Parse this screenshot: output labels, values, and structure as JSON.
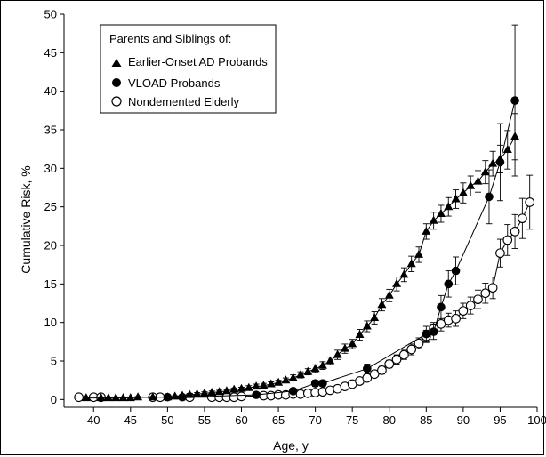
{
  "chart_data": {
    "type": "scatter",
    "title": "",
    "xlabel": "Age, y",
    "ylabel": "Cumulative Risk, %",
    "xlim": [
      36,
      100
    ],
    "ylim": [
      -1,
      50
    ],
    "xticks": [
      40,
      45,
      50,
      55,
      60,
      65,
      70,
      75,
      80,
      85,
      90,
      95,
      100
    ],
    "yticks": [
      0,
      5,
      10,
      15,
      20,
      25,
      30,
      35,
      40,
      45,
      50
    ],
    "grid": false,
    "legend": {
      "title": "Parents and Siblings of:",
      "placement": "top-left"
    },
    "series": [
      {
        "name": "Earlier-Onset AD Probands",
        "marker": "filled-triangle",
        "connected": true,
        "x": [
          39,
          41,
          42,
          43,
          44,
          45,
          46,
          48,
          50,
          51,
          52,
          53,
          54,
          55,
          56,
          57,
          58,
          59,
          60,
          61,
          62,
          63,
          64,
          65,
          66,
          67,
          68,
          69,
          70,
          71,
          72,
          73,
          74,
          75,
          76,
          77,
          78,
          79,
          80,
          81,
          82,
          83,
          84,
          85,
          86,
          87,
          88,
          89,
          90,
          91,
          92,
          93,
          94,
          95,
          96,
          97
        ],
        "y": [
          0.2,
          0.2,
          0.2,
          0.2,
          0.2,
          0.2,
          0.3,
          0.3,
          0.3,
          0.4,
          0.5,
          0.6,
          0.7,
          0.8,
          0.9,
          1.0,
          1.1,
          1.3,
          1.4,
          1.5,
          1.7,
          1.8,
          2.0,
          2.2,
          2.5,
          2.8,
          3.2,
          3.6,
          4.0,
          4.4,
          5.0,
          5.8,
          6.6,
          7.2,
          8.4,
          9.5,
          10.6,
          12.3,
          13.5,
          15.0,
          16.2,
          17.6,
          18.8,
          21.8,
          23.2,
          24.1,
          25.0,
          26.0,
          26.8,
          27.7,
          28.3,
          29.5,
          30.6,
          31.2,
          32.4,
          34.1
        ],
        "error": [
          0.1,
          0.1,
          0.1,
          0.1,
          0.1,
          0.1,
          0.1,
          0.1,
          0.1,
          0.1,
          0.1,
          0.2,
          0.2,
          0.2,
          0.2,
          0.2,
          0.2,
          0.2,
          0.2,
          0.3,
          0.3,
          0.3,
          0.3,
          0.3,
          0.3,
          0.4,
          0.4,
          0.4,
          0.5,
          0.5,
          0.5,
          0.6,
          0.6,
          0.6,
          0.7,
          0.7,
          0.8,
          0.8,
          0.8,
          0.9,
          0.9,
          1.0,
          1.0,
          1.0,
          1.1,
          1.1,
          1.2,
          1.2,
          1.3,
          1.3,
          1.4,
          1.5,
          1.6,
          1.8,
          2.5,
          3.0
        ]
      },
      {
        "name": "VLOAD Probands",
        "marker": "filled-circle",
        "connected": true,
        "x": [
          50,
          52,
          62,
          67,
          70,
          71,
          77,
          85,
          86,
          87,
          88,
          89,
          93.5,
          95,
          97
        ],
        "y": [
          0.3,
          0.3,
          0.6,
          1.1,
          2.1,
          2.1,
          4.0,
          8.5,
          8.8,
          12.0,
          15.0,
          16.7,
          26.3,
          30.8,
          38.8
        ],
        "error": [
          0.1,
          0.1,
          0.2,
          0.3,
          0.4,
          0.4,
          0.6,
          1.0,
          1.0,
          1.5,
          1.7,
          1.8,
          3.5,
          5.0,
          9.8
        ]
      },
      {
        "name": "Nondemented Elderly",
        "marker": "open-circle",
        "connected": true,
        "x": [
          38,
          40,
          41,
          48,
          49,
          53,
          56,
          57,
          58,
          59,
          60,
          63,
          64,
          65,
          66,
          67,
          68,
          69,
          70,
          71,
          72,
          73,
          74,
          75,
          76,
          77,
          78,
          79,
          80,
          81,
          82,
          83,
          84,
          85,
          86,
          87,
          88,
          89,
          90,
          91,
          92,
          93,
          94,
          95,
          96,
          97,
          98,
          99
        ],
        "y": [
          0.3,
          0.3,
          0.3,
          0.3,
          0.3,
          0.3,
          0.3,
          0.3,
          0.3,
          0.3,
          0.4,
          0.5,
          0.5,
          0.6,
          0.6,
          0.7,
          0.7,
          0.8,
          0.9,
          1.0,
          1.2,
          1.4,
          1.7,
          2.0,
          2.4,
          2.8,
          3.3,
          3.8,
          4.6,
          5.2,
          5.8,
          6.5,
          7.3,
          8.2,
          9.2,
          9.8,
          10.3,
          10.5,
          11.5,
          12.2,
          13.0,
          13.8,
          14.5,
          19.0,
          20.7,
          21.8,
          23.5,
          25.6
        ],
        "error": [
          0.1,
          0.1,
          0.1,
          0.1,
          0.1,
          0.1,
          0.1,
          0.1,
          0.1,
          0.1,
          0.1,
          0.1,
          0.1,
          0.1,
          0.1,
          0.1,
          0.1,
          0.2,
          0.2,
          0.2,
          0.2,
          0.2,
          0.3,
          0.3,
          0.3,
          0.4,
          0.4,
          0.5,
          0.5,
          0.6,
          0.6,
          0.7,
          0.7,
          0.8,
          0.8,
          0.9,
          0.9,
          1.0,
          1.0,
          1.1,
          1.2,
          1.3,
          1.4,
          1.8,
          2.0,
          2.2,
          2.6,
          3.5
        ]
      }
    ]
  }
}
